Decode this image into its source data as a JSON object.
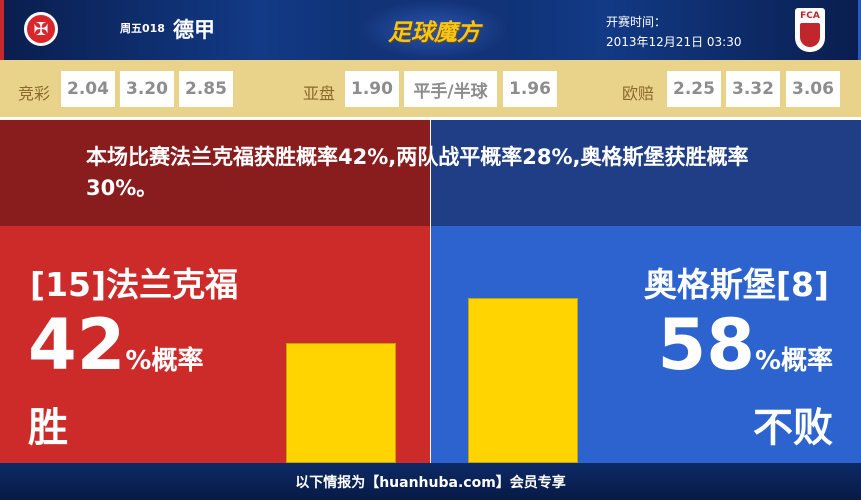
{
  "header": {
    "match_no": "周五018",
    "league": "德甲",
    "brand": "足球魔方",
    "time_label": "开赛时间：",
    "time_value": "2013年12月21日 03:30",
    "away_logo_text": "FCA"
  },
  "odds": {
    "jingcai": {
      "label": "竞彩",
      "values": [
        "2.04",
        "3.20",
        "2.85"
      ]
    },
    "yapan": {
      "label": "亚盘",
      "values": [
        "1.90",
        "平手/半球",
        "1.96"
      ]
    },
    "oupei": {
      "label": "欧赔",
      "values": [
        "2.25",
        "3.32",
        "3.06"
      ]
    }
  },
  "summary": "本场比赛法兰克福获胜概率42%,两队战平概率28%,奥格斯堡获胜概率30%。",
  "home": {
    "name": "[15]法兰克福",
    "percent": "42",
    "percent_suffix": "%概率",
    "result": "胜",
    "probability": 42,
    "color": "#cd2a2a"
  },
  "away": {
    "name": "奥格斯堡[8]",
    "percent": "58",
    "percent_suffix": "%概率",
    "result": "不败",
    "probability": 58,
    "color": "#2d63cf"
  },
  "bar_color": "#ffd400",
  "footer": "以下情报为【huanhuba.com】会员专享"
}
